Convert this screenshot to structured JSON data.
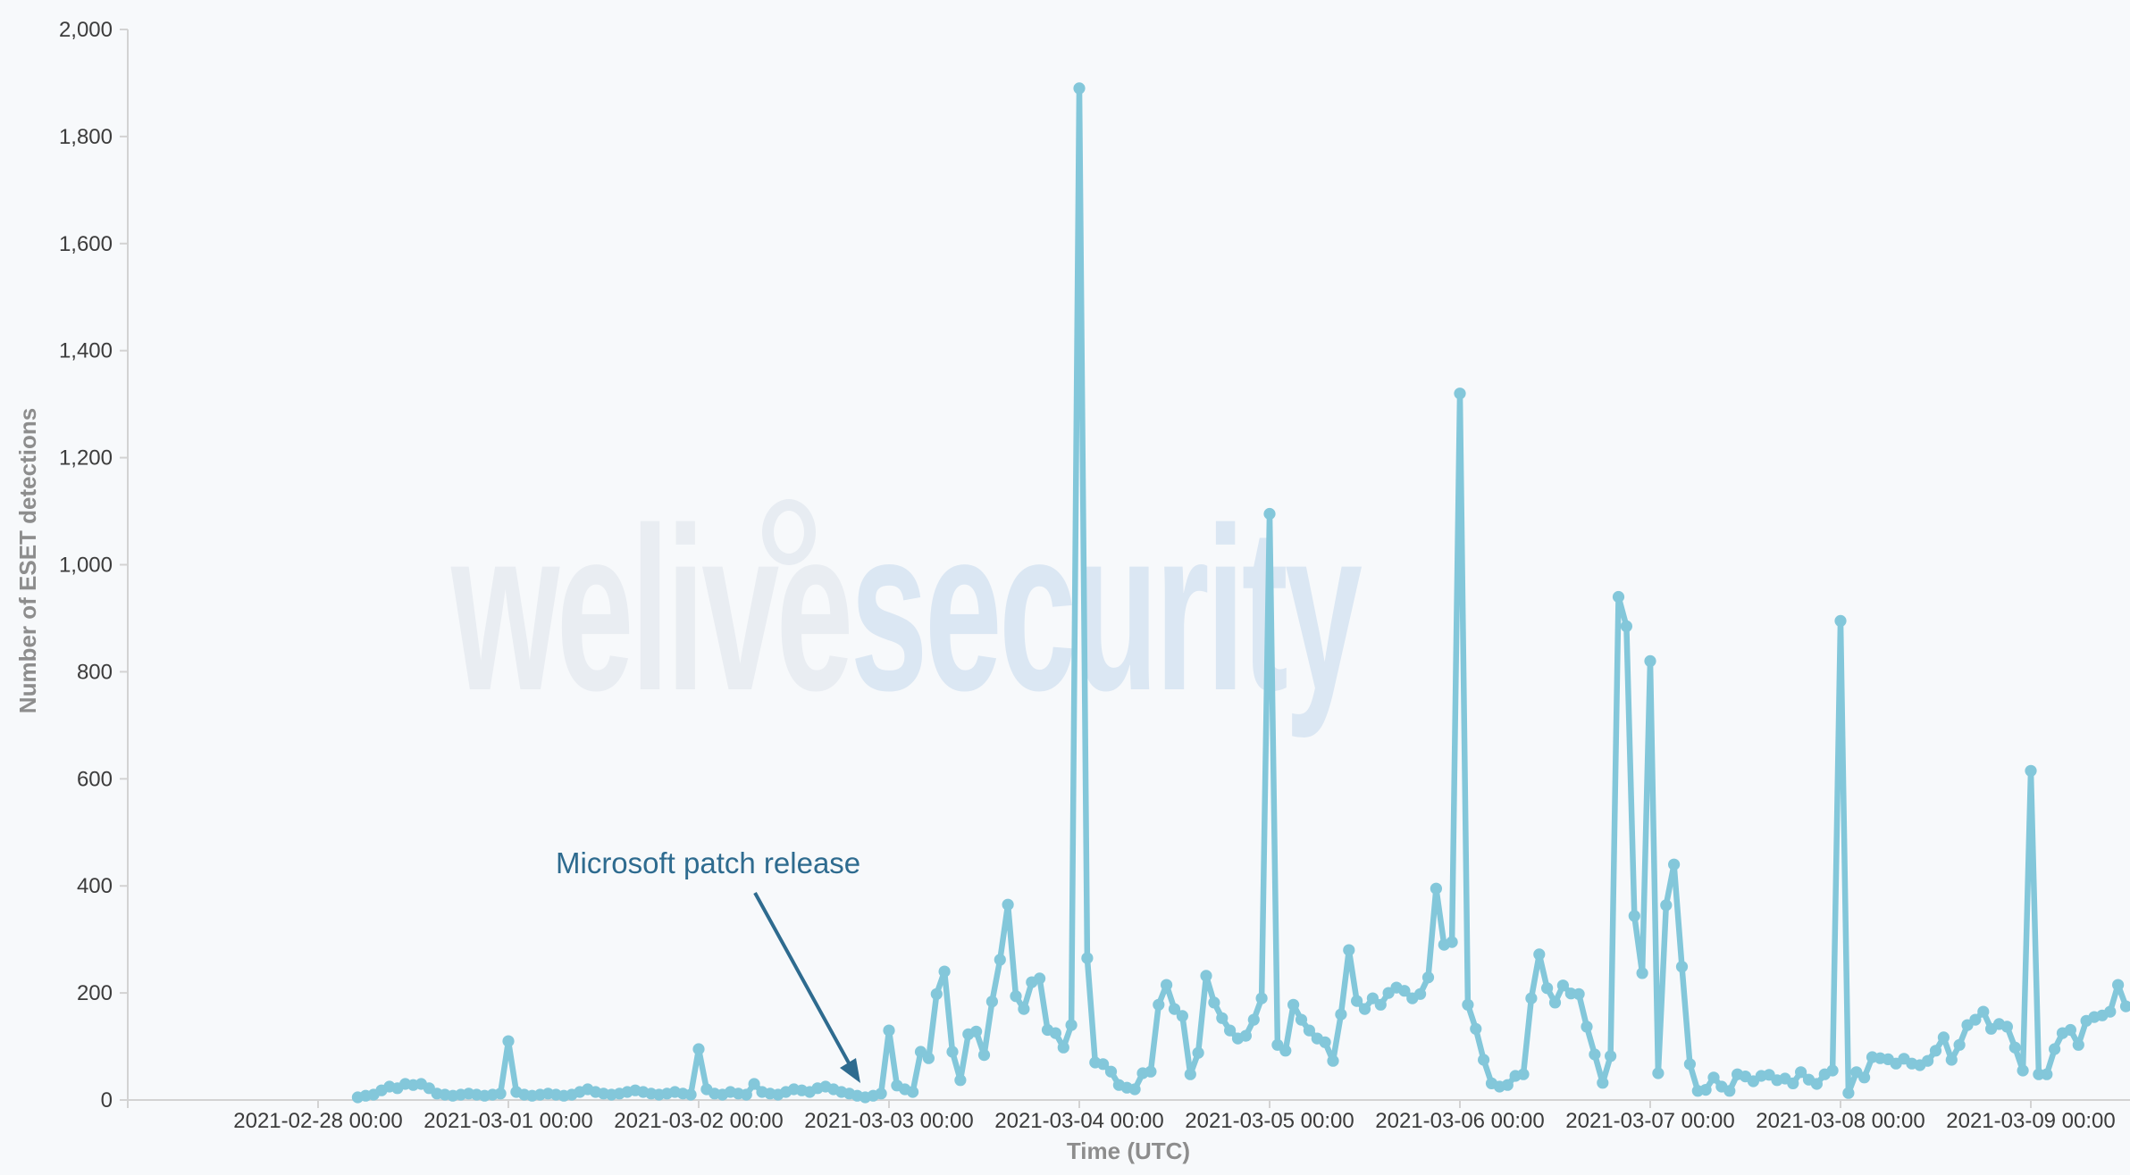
{
  "chart_data": {
    "type": "line",
    "title": "",
    "xlabel": "Time (UTC)",
    "ylabel": "Number of ESET detections",
    "ylim": [
      0,
      2000
    ],
    "ytick_step": 200,
    "ytick_labels": [
      "0",
      "200",
      "400",
      "600",
      "800",
      "1,000",
      "1,200",
      "1,400",
      "1,600",
      "1,800",
      "2,000"
    ],
    "xtick_labels": [
      "2021-02-28 00:00",
      "2021-03-01 00:00",
      "2021-03-02 00:00",
      "2021-03-03 00:00",
      "2021-03-04 00:00",
      "2021-03-05 00:00",
      "2021-03-06 00:00",
      "2021-03-07 00:00",
      "2021-03-08 00:00",
      "2021-03-09 00:00"
    ],
    "grid": false,
    "legend_position": "none",
    "annotation": {
      "text": "Microsoft patch release"
    },
    "watermark": {
      "part1": "welive",
      "part2": "security"
    },
    "colors": {
      "line": "#83c7da",
      "annotation": "#2e6b8f",
      "axis": "#d3d3d3",
      "tick_text": "#3c3c3c",
      "axis_title": "#8d8d8d",
      "watermark_part1": "#e9edf2",
      "watermark_part2": "#dbe7f3",
      "background": "#f7f9fb"
    },
    "series": [
      {
        "name": "Number of ESET detections",
        "start": "2021-02-28 05:00",
        "interval_hours": 1,
        "values": [
          5,
          8,
          10,
          18,
          25,
          22,
          30,
          28,
          30,
          22,
          12,
          10,
          8,
          10,
          12,
          10,
          8,
          10,
          12,
          110,
          15,
          10,
          8,
          10,
          12,
          10,
          8,
          10,
          15,
          20,
          15,
          12,
          10,
          12,
          15,
          18,
          15,
          12,
          10,
          12,
          15,
          12,
          10,
          95,
          20,
          12,
          10,
          15,
          12,
          10,
          30,
          15,
          12,
          10,
          15,
          20,
          18,
          15,
          22,
          25,
          20,
          15,
          12,
          8,
          5,
          8,
          12,
          130,
          27,
          20,
          15,
          90,
          78,
          198,
          240,
          90,
          37,
          123,
          128,
          84,
          184,
          262,
          365,
          194,
          170,
          220,
          227,
          131,
          125,
          98,
          140,
          1890,
          265,
          70,
          67,
          53,
          28,
          23,
          20,
          50,
          53,
          178,
          215,
          170,
          157,
          48,
          88,
          232,
          182,
          153,
          130,
          115,
          120,
          150,
          190,
          1095,
          103,
          92,
          178,
          150,
          130,
          115,
          108,
          73,
          160,
          280,
          185,
          170,
          190,
          178,
          200,
          210,
          204,
          190,
          198,
          229,
          395,
          290,
          295,
          1320,
          178,
          133,
          75,
          31,
          25,
          28,
          45,
          48,
          190,
          272,
          209,
          182,
          214,
          199,
          198,
          137,
          85,
          32,
          82,
          940,
          885,
          344,
          237,
          820,
          50,
          364,
          440,
          249,
          67,
          17,
          19,
          42,
          25,
          17,
          48,
          44,
          35,
          45,
          47,
          37,
          40,
          31,
          52,
          38,
          30,
          48,
          55,
          895,
          13,
          52,
          42,
          80,
          78,
          76,
          68,
          77,
          68,
          65,
          73,
          92,
          117,
          75,
          103,
          140,
          150,
          165,
          133,
          142,
          137,
          98,
          55,
          615,
          48,
          48,
          95,
          125,
          131,
          103,
          148,
          155,
          158,
          165,
          215,
          175
        ]
      }
    ]
  }
}
